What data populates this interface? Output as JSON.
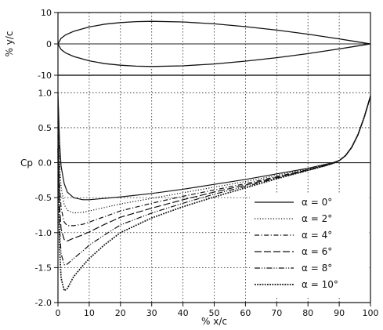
{
  "chart_data": [
    {
      "type": "line",
      "title": "",
      "xlabel": "",
      "ylabel": "% y/c",
      "xlim": [
        0,
        100
      ],
      "ylim": [
        -10,
        10
      ],
      "grid": true,
      "x_ticks": [
        0,
        10,
        20,
        30,
        40,
        50,
        60,
        70,
        80,
        90,
        100
      ],
      "y_ticks": [
        -10,
        0,
        10
      ],
      "y_tick_labels": [
        "-10",
        "0",
        "10"
      ],
      "series": [
        {
          "part": "upper-surface",
          "x": [
            0,
            1,
            2.5,
            5,
            10,
            15,
            20,
            25,
            30,
            40,
            50,
            60,
            70,
            80,
            90,
            95,
            100
          ],
          "y": [
            0,
            1.8,
            2.9,
            4.0,
            5.4,
            6.3,
            6.8,
            7.1,
            7.2,
            7.0,
            6.4,
            5.5,
            4.4,
            3.1,
            1.6,
            0.8,
            0
          ]
        },
        {
          "part": "lower-surface",
          "x": [
            0,
            1,
            2.5,
            5,
            10,
            15,
            20,
            25,
            30,
            40,
            50,
            60,
            70,
            80,
            90,
            95,
            100
          ],
          "y": [
            0,
            -1.8,
            -2.9,
            -4.0,
            -5.4,
            -6.3,
            -6.8,
            -7.1,
            -7.2,
            -7.0,
            -6.4,
            -5.5,
            -4.4,
            -3.1,
            -1.6,
            -0.8,
            0
          ]
        }
      ]
    },
    {
      "type": "line",
      "title": "",
      "xlabel": "% x/c",
      "ylabel": "Cp",
      "xlim": [
        0,
        100
      ],
      "ylim": [
        -2.0,
        1.25
      ],
      "grid": true,
      "legend_position": "bottom-right",
      "x_ticks": [
        0,
        10,
        20,
        30,
        40,
        50,
        60,
        70,
        80,
        90,
        100
      ],
      "x_tick_labels": [
        "0",
        "10",
        "20",
        "30",
        "40",
        "50",
        "60",
        "70",
        "80",
        "90",
        "100"
      ],
      "y_ticks": [
        -2.0,
        -1.5,
        -1.0,
        -0.5,
        0.0,
        0.5,
        1.0
      ],
      "y_tick_labels": [
        "-2.0",
        "-1.5",
        "-1.0",
        "-0.5",
        "0.0",
        "0.5",
        "1.0"
      ],
      "x": [
        0,
        0.5,
        1,
        2,
        3,
        5,
        8,
        10,
        15,
        20,
        30,
        40,
        50,
        60,
        70,
        80,
        85,
        88,
        90,
        92,
        94,
        96,
        98,
        100
      ],
      "series": [
        {
          "name": "α = 0°",
          "dash": "solid",
          "y": [
            1.0,
            0.3,
            -0.05,
            -0.3,
            -0.42,
            -0.5,
            -0.53,
            -0.53,
            -0.51,
            -0.49,
            -0.44,
            -0.38,
            -0.31,
            -0.24,
            -0.16,
            -0.08,
            -0.03,
            0.0,
            0.03,
            0.1,
            0.22,
            0.4,
            0.65,
            0.95
          ]
        },
        {
          "name": "α = 2°",
          "dash": "dotted",
          "y": [
            0.9,
            0.0,
            -0.35,
            -0.6,
            -0.68,
            -0.72,
            -0.71,
            -0.69,
            -0.64,
            -0.59,
            -0.51,
            -0.43,
            -0.35,
            -0.27,
            -0.18,
            -0.09,
            -0.04,
            0.0,
            0.03,
            0.1,
            0.22,
            0.4,
            0.65,
            0.95
          ]
        },
        {
          "name": "α = 4°",
          "dash": "dashdot",
          "y": [
            0.8,
            -0.3,
            -0.65,
            -0.85,
            -0.9,
            -0.9,
            -0.88,
            -0.85,
            -0.77,
            -0.69,
            -0.58,
            -0.48,
            -0.39,
            -0.3,
            -0.2,
            -0.1,
            -0.04,
            0.0,
            0.03,
            0.1,
            0.22,
            0.4,
            0.65,
            0.95
          ]
        },
        {
          "name": "α = 6°",
          "dash": "longdash",
          "y": [
            0.6,
            -0.6,
            -0.95,
            -1.1,
            -1.12,
            -1.08,
            -1.03,
            -0.99,
            -0.88,
            -0.78,
            -0.65,
            -0.53,
            -0.42,
            -0.32,
            -0.21,
            -0.1,
            -0.05,
            -0.01,
            0.03,
            0.1,
            0.22,
            0.4,
            0.65,
            0.95
          ]
        },
        {
          "name": "α = 8°",
          "dash": "dashdotdot",
          "y": [
            0.4,
            -0.9,
            -1.3,
            -1.46,
            -1.45,
            -1.37,
            -1.26,
            -1.18,
            -1.03,
            -0.89,
            -0.72,
            -0.58,
            -0.45,
            -0.34,
            -0.22,
            -0.11,
            -0.05,
            -0.01,
            0.03,
            0.1,
            0.22,
            0.4,
            0.65,
            0.95
          ]
        },
        {
          "name": "α = 10°",
          "dash": "denseDot",
          "y": [
            0.2,
            -1.2,
            -1.65,
            -1.83,
            -1.8,
            -1.63,
            -1.47,
            -1.37,
            -1.17,
            -1.0,
            -0.79,
            -0.63,
            -0.49,
            -0.36,
            -0.23,
            -0.11,
            -0.05,
            -0.01,
            0.03,
            0.1,
            0.22,
            0.4,
            0.65,
            0.95
          ]
        }
      ]
    }
  ]
}
